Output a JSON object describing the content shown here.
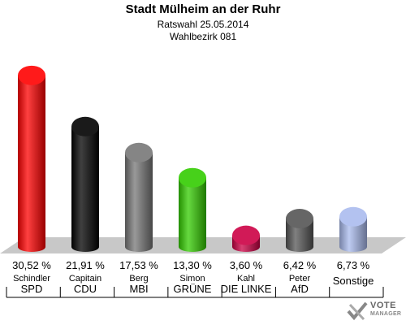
{
  "header": {
    "title": "Stadt Mülheim an der Ruhr",
    "subtitle": "Ratswahl 25.05.2014",
    "district": "Wahlbezirk 081"
  },
  "chart_data": {
    "type": "bar",
    "title": "Stadt Mülheim an der Ruhr",
    "subtitle": "Ratswahl 25.05.2014",
    "categories": [
      "SPD",
      "CDU",
      "MBI",
      "GRÜNE",
      "DIE LINKE",
      "AfD",
      "Sonstige"
    ],
    "candidates": [
      "Schindler",
      "Capitain",
      "Berg",
      "Simon",
      "Kahl",
      "Peter",
      ""
    ],
    "values": [
      30.52,
      21.91,
      17.53,
      13.3,
      3.6,
      6.42,
      6.73
    ],
    "value_labels": [
      "30,52 %",
      "21,91 %",
      "17,53 %",
      "13,30 %",
      "3,60 %",
      "6,42 %",
      "6,73 %"
    ],
    "colors": [
      "#ff0000",
      "#000000",
      "#777777",
      "#33cc00",
      "#cc0044",
      "#555555",
      "#aabbee"
    ],
    "ylim": [
      0,
      32
    ]
  },
  "logo": {
    "line1": "VOTE",
    "line2": "MANAGER"
  }
}
